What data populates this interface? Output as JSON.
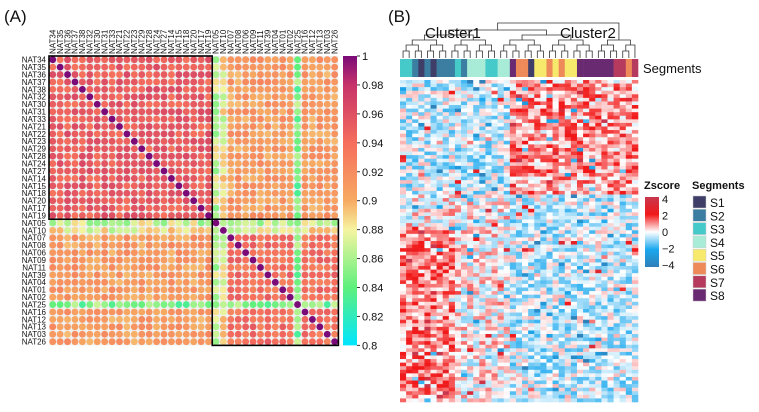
{
  "panel_a": {
    "label": "(A)",
    "chart_data": {
      "type": "heatmap",
      "samples": [
        "NAT34",
        "NAT35",
        "NAT36",
        "NAT37",
        "NAT38",
        "NAT32",
        "NAT30",
        "NAT31",
        "NAT33",
        "NAT21",
        "NAT22",
        "NAT23",
        "NAT29",
        "NAT28",
        "NAT24",
        "NAT27",
        "NAT14",
        "NAT15",
        "NAT18",
        "NAT20",
        "NAT17",
        "NAT19",
        "NAT05",
        "NAT10",
        "NAT07",
        "NAT08",
        "NAT06",
        "NAT09",
        "NAT11",
        "NAT39",
        "NAT04",
        "NAT01",
        "NAT02",
        "NAT25",
        "NAT16",
        "NAT12",
        "NAT13",
        "NAT03",
        "NAT26"
      ],
      "clusters": [
        {
          "first": "NAT34",
          "last": "NAT19",
          "within_corr": 0.95
        },
        {
          "first": "NAT05",
          "last": "NAT26",
          "within_corr": 0.94
        }
      ],
      "between_cluster_corr": 0.91,
      "low_corr_samples": {
        "NAT25": 0.85,
        "NAT05": 0.87,
        "NAT10": 0.88
      },
      "diagonal": 1,
      "colorbar": {
        "ticks": [
          "1",
          "0.98",
          "0.96",
          "0.94",
          "0.92",
          "0.9",
          "0.88",
          "0.86",
          "0.84",
          "0.82",
          "0.8"
        ],
        "range": [
          0.8,
          1
        ],
        "colors": [
          "#00e6ff",
          "#5ef07c",
          "#f6f4a0",
          "#f7aa62",
          "#f66e5c",
          "#c7336a",
          "#7a0a78"
        ]
      }
    }
  },
  "panel_b": {
    "label": "(B)",
    "cluster1_label": "Cluster1",
    "cluster2_label": "Cluster2",
    "segments_row_label": "Segments",
    "chart_data": {
      "type": "heatmap",
      "column_segments": [
        "S3",
        "S3",
        "S2",
        "S1",
        "S2",
        "S1",
        "S2",
        "S2",
        "S2",
        "S3",
        "S2",
        "S4",
        "S4",
        "S4",
        "S3",
        "S3",
        "S4",
        "S4",
        "S8",
        "S6",
        "S6",
        "S1",
        "S5",
        "S5",
        "S6",
        "S5",
        "S6",
        "S5",
        "S5",
        "S8",
        "S8",
        "S8",
        "S8",
        "S8",
        "S8",
        "S7",
        "S7",
        "S6",
        "S7"
      ],
      "zscore_range": [
        -4,
        4
      ]
    },
    "legend": {
      "zscore_title": "Zscore",
      "zscore_ticks": [
        "4",
        "2",
        "0",
        "−2",
        "−4"
      ],
      "segments_title": "Segments",
      "segments": [
        {
          "label": "S1",
          "color": "#3f3e68"
        },
        {
          "label": "S2",
          "color": "#3b7ea1"
        },
        {
          "label": "S3",
          "color": "#46c9c9"
        },
        {
          "label": "S4",
          "color": "#a8ecd8"
        },
        {
          "label": "S5",
          "color": "#f7e96b"
        },
        {
          "label": "S6",
          "color": "#ee8a5a"
        },
        {
          "label": "S7",
          "color": "#b53a5e"
        },
        {
          "label": "S8",
          "color": "#6a2a72"
        }
      ]
    }
  }
}
